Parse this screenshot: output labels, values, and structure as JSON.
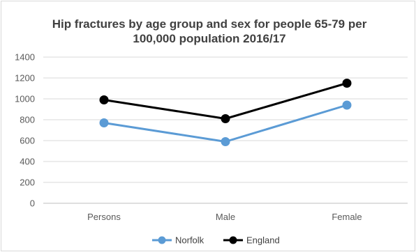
{
  "chart_data": {
    "type": "line",
    "title_line1": "Hip fractures by age group and sex for people 65-79 per",
    "title_line2": "100,000 population 2016/17",
    "categories": [
      "Persons",
      "Male",
      "Female"
    ],
    "series": [
      {
        "name": "Norfolk",
        "values": [
          770,
          590,
          940
        ],
        "color": "#5b9bd5"
      },
      {
        "name": "England",
        "values": [
          990,
          810,
          1150
        ],
        "color": "#000000"
      }
    ],
    "ylim": [
      0,
      1400
    ],
    "yticks": [
      0,
      200,
      400,
      600,
      800,
      1000,
      1200,
      1400
    ],
    "grid": true,
    "legend": "bottom"
  }
}
